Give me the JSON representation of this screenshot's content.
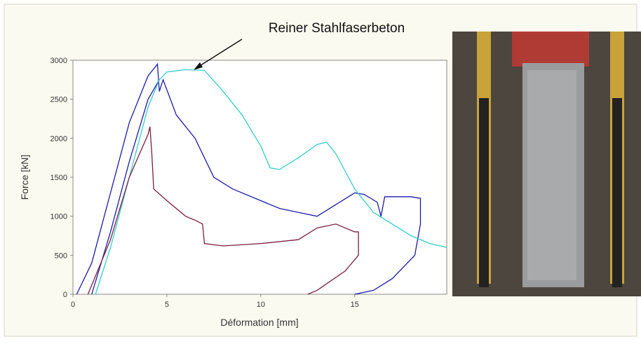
{
  "chart_data": {
    "type": "line",
    "annotation": "Reiner Stahlfaserbeton",
    "x_label": "Déformation [mm]",
    "y_label": "Force [kN]",
    "xlim": [
      0,
      19.9
    ],
    "ylim": [
      0,
      3000
    ],
    "xticks": [
      0,
      5,
      10,
      15
    ],
    "yticks": [
      0,
      500,
      1000,
      1500,
      2000,
      2500,
      3000
    ],
    "series": [
      {
        "color": "#1c1ca8",
        "x": [
          0.2,
          1,
          2,
          3,
          4,
          4.5,
          4.6,
          4.8,
          5.5,
          6.5,
          7.5,
          8.5,
          10,
          11,
          12,
          13,
          14,
          15,
          15.5,
          16.2,
          16.4,
          16.6,
          17,
          18,
          18.5,
          18.5,
          18.2,
          17,
          16,
          15
        ],
        "values": [
          0,
          400,
          1300,
          2200,
          2800,
          2950,
          2600,
          2750,
          2300,
          2000,
          1500,
          1350,
          1200,
          1100,
          1050,
          1000,
          1150,
          1300,
          1280,
          1180,
          1000,
          1250,
          1250,
          1250,
          1230,
          900,
          500,
          200,
          50,
          0
        ]
      },
      {
        "color": "#1c1ca8",
        "x": [
          1,
          2,
          3,
          4,
          4.6
        ],
        "values": [
          0,
          800,
          1700,
          2500,
          2750
        ]
      },
      {
        "color": "#33cccc",
        "x": [
          1.2,
          2,
          3,
          4,
          4.6,
          5,
          6,
          7,
          8,
          9,
          10,
          10.5,
          11,
          12,
          13,
          13.5,
          14,
          15,
          16,
          17,
          18,
          19,
          19.9
        ],
        "values": [
          0,
          600,
          1500,
          2400,
          2750,
          2850,
          2880,
          2870,
          2600,
          2300,
          1900,
          1620,
          1600,
          1750,
          1920,
          1950,
          1800,
          1350,
          1050,
          900,
          750,
          650,
          600
        ]
      },
      {
        "color": "#7a2040",
        "x": [
          0.8,
          2,
          3,
          4,
          4.1,
          4.2,
          4.3,
          5,
          6,
          6.5,
          6.9,
          7,
          8,
          10,
          12,
          13,
          14,
          15,
          15.2,
          15.2,
          14.5,
          13,
          12.5
        ],
        "values": [
          0,
          700,
          1500,
          2050,
          2150,
          1800,
          1350,
          1200,
          1000,
          950,
          900,
          650,
          620,
          650,
          700,
          850,
          900,
          800,
          800,
          500,
          300,
          50,
          0
        ]
      }
    ]
  }
}
